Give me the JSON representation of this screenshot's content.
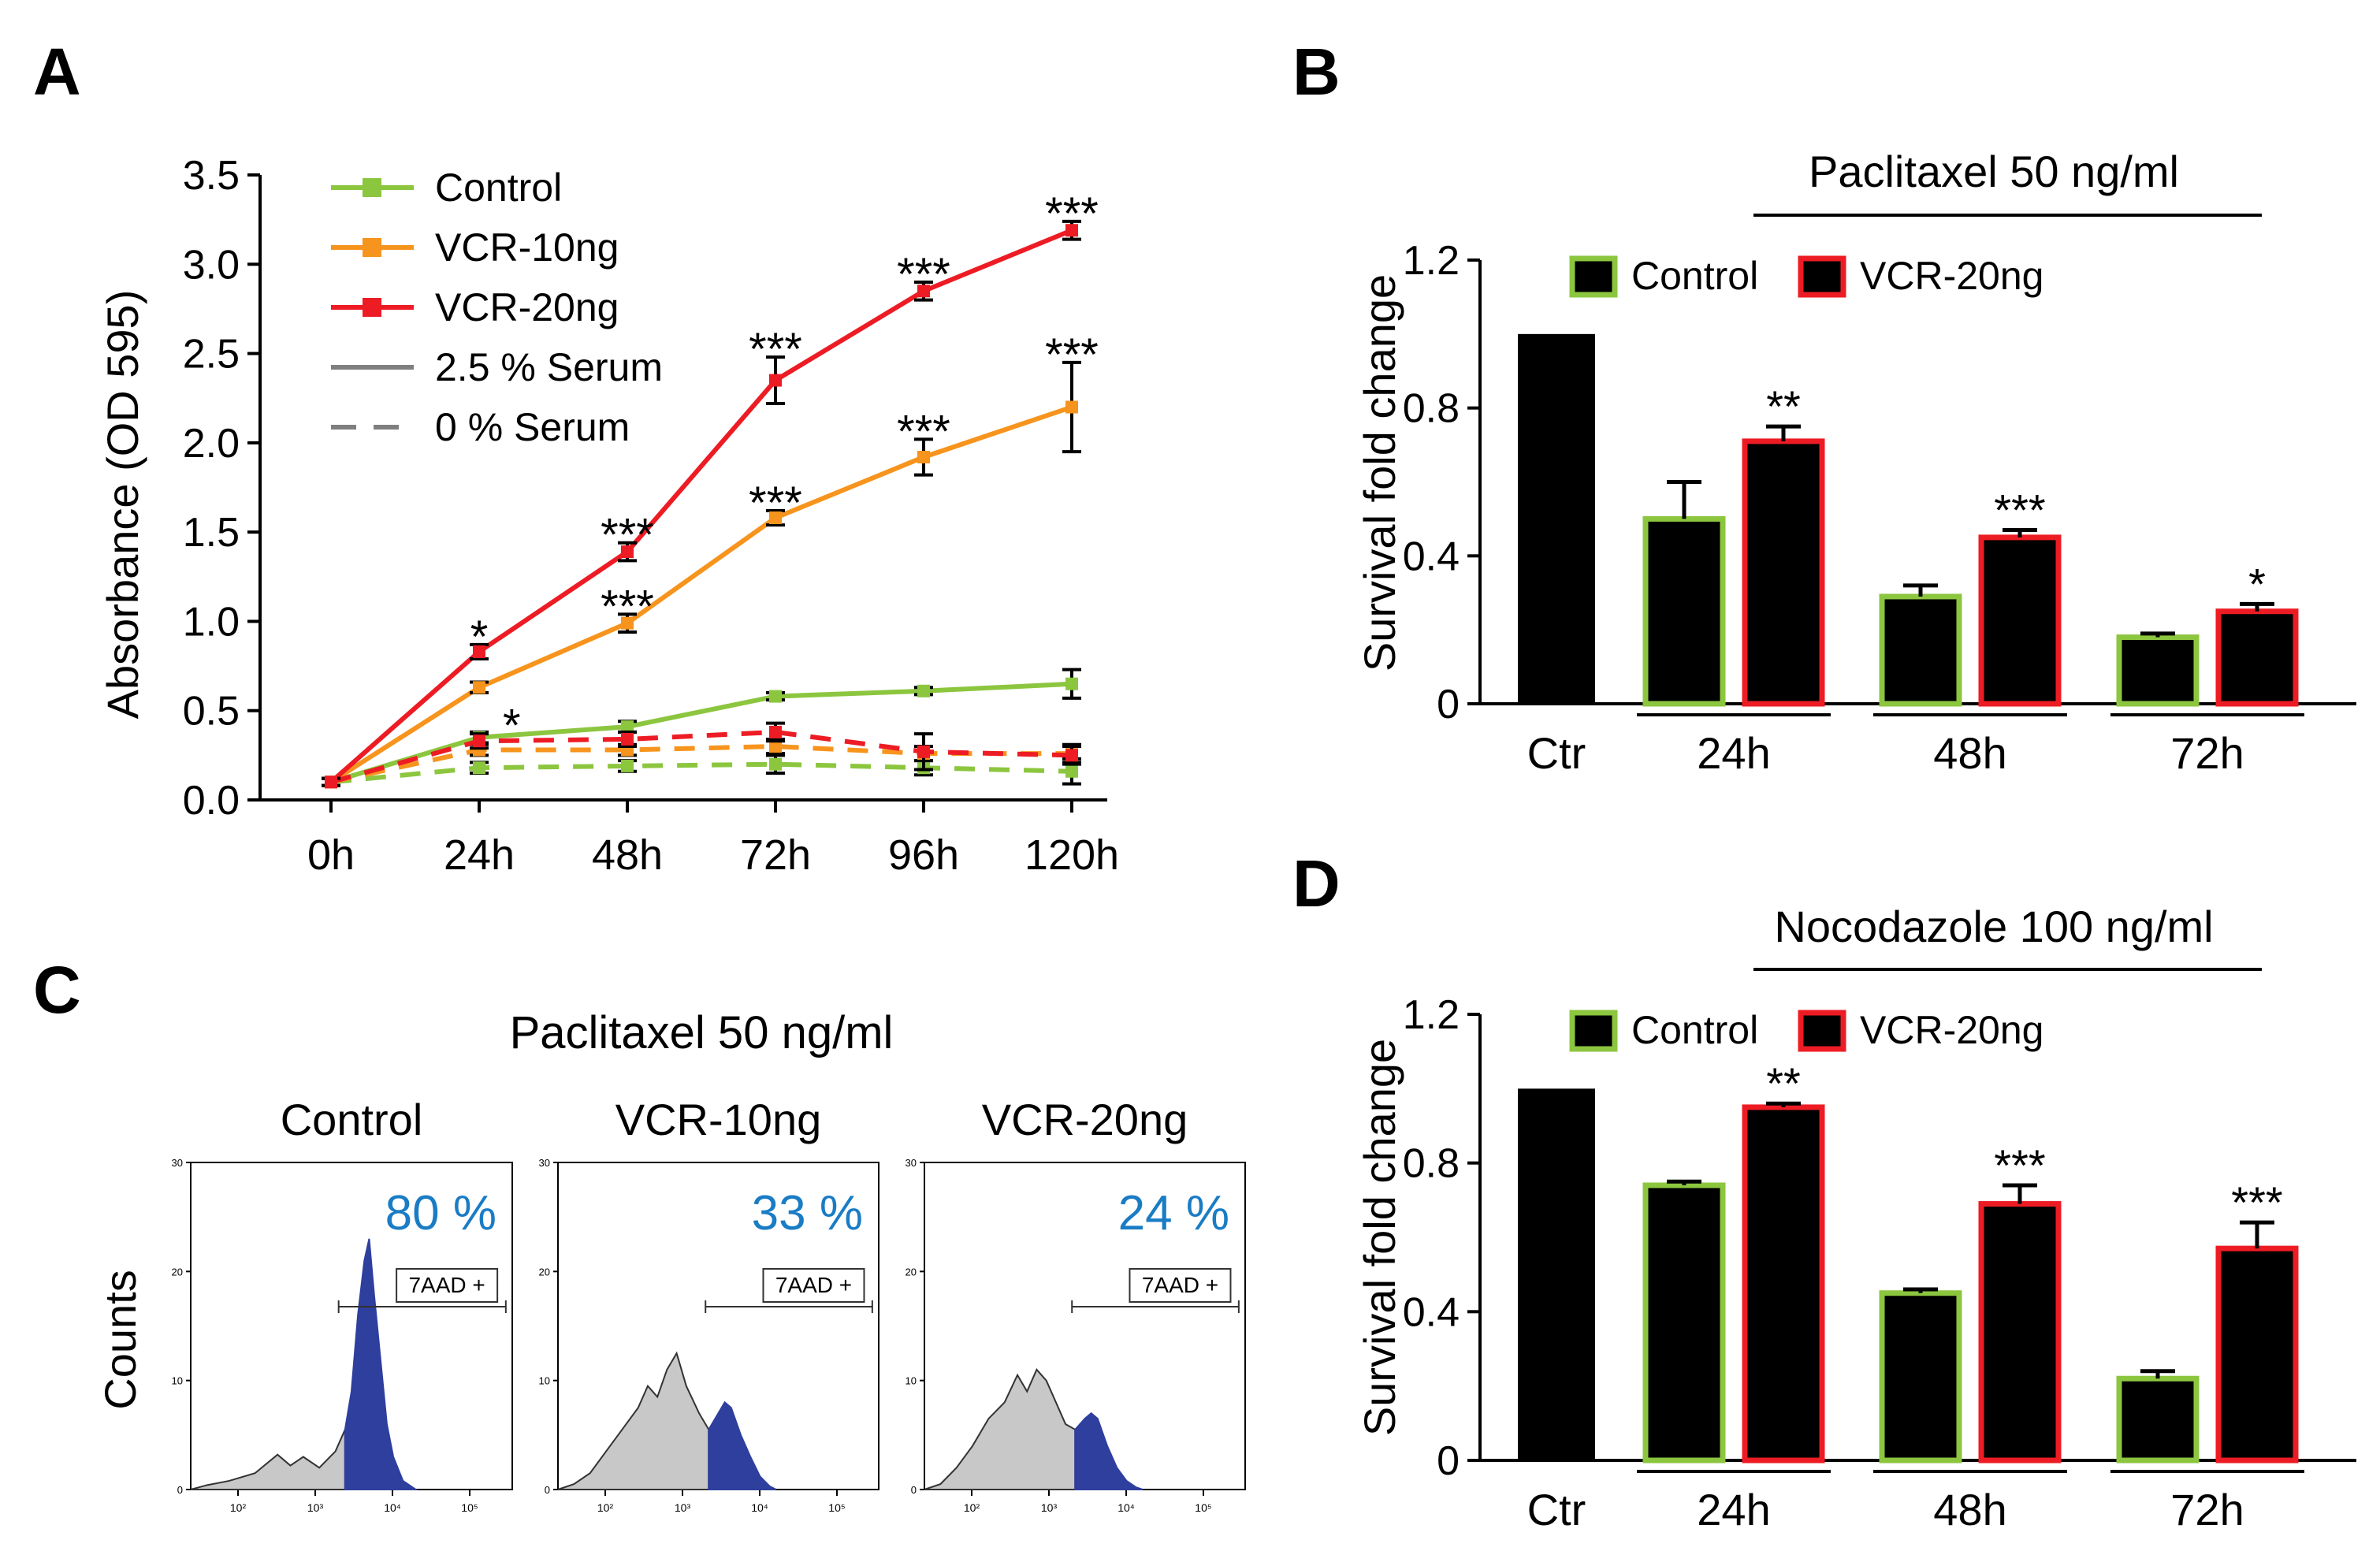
{
  "colors": {
    "control": "#8cc63f",
    "vcr10": "#f7941d",
    "vcr20": "#ed1c24",
    "black": "#000000",
    "flow_gray": "#c8c8c8",
    "flow_blue": "#2e3f9e",
    "percent_blue": "#1a7cc4"
  },
  "chart_data": [
    {
      "panel": "A",
      "type": "line",
      "ylabel": "Absorbance (OD 595)",
      "xlabel": "",
      "categories": [
        "0h",
        "24h",
        "48h",
        "72h",
        "96h",
        "120h"
      ],
      "ylim": [
        0,
        3.5
      ],
      "yticks": [
        "0.0",
        "0.5",
        "1.0",
        "1.5",
        "2.0",
        "2.5",
        "3.0",
        "3.5"
      ],
      "legend": [
        {
          "label": "Control",
          "color": "#8cc63f",
          "style": "marker"
        },
        {
          "label": "VCR-10ng",
          "color": "#f7941d",
          "style": "marker"
        },
        {
          "label": "VCR-20ng",
          "color": "#ed1c24",
          "style": "marker"
        },
        {
          "label": "2.5 % Serum",
          "color": "#7f7f7f",
          "style": "solid"
        },
        {
          "label": "0 % Serum",
          "color": "#7f7f7f",
          "style": "dashed"
        }
      ],
      "series": [
        {
          "name": "Control",
          "serum": "2.5 % Serum",
          "color": "#8cc63f",
          "dashed": false,
          "values": [
            0.1,
            0.35,
            0.41,
            0.58,
            0.61,
            0.65
          ],
          "errors": [
            0.02,
            0.03,
            0.03,
            0.02,
            0.02,
            0.08
          ]
        },
        {
          "name": "VCR-10ng",
          "serum": "2.5 % Serum",
          "color": "#f7941d",
          "dashed": false,
          "values": [
            0.1,
            0.63,
            0.99,
            1.58,
            1.92,
            2.2
          ],
          "errors": [
            0.02,
            0.03,
            0.05,
            0.04,
            0.1,
            0.25
          ]
        },
        {
          "name": "VCR-20ng",
          "serum": "2.5 % Serum",
          "color": "#ed1c24",
          "dashed": false,
          "values": [
            0.1,
            0.83,
            1.39,
            2.35,
            2.85,
            3.19
          ],
          "errors": [
            0.02,
            0.04,
            0.05,
            0.13,
            0.05,
            0.05
          ]
        },
        {
          "name": "Control",
          "serum": "0 % Serum",
          "color": "#8cc63f",
          "dashed": true,
          "values": [
            0.1,
            0.18,
            0.19,
            0.2,
            0.18,
            0.16
          ],
          "errors": [
            0.02,
            0.03,
            0.03,
            0.05,
            0.04,
            0.07
          ]
        },
        {
          "name": "VCR-10ng",
          "serum": "0 % Serum",
          "color": "#f7941d",
          "dashed": true,
          "values": [
            0.1,
            0.28,
            0.28,
            0.3,
            0.26,
            0.26
          ],
          "errors": [
            0.02,
            0.03,
            0.03,
            0.04,
            0.04,
            0.05
          ]
        },
        {
          "name": "VCR-20ng",
          "serum": "0 % Serum",
          "color": "#ed1c24",
          "dashed": true,
          "values": [
            0.1,
            0.33,
            0.34,
            0.38,
            0.27,
            0.25
          ],
          "errors": [
            0.02,
            0.04,
            0.04,
            0.05,
            0.1,
            0.05
          ]
        }
      ],
      "annotations": [
        {
          "text": "*",
          "series": "VCR-20ng",
          "x": "24h"
        },
        {
          "text": "*",
          "series": "VCR-10ng",
          "x": "24h"
        },
        {
          "text": "***",
          "series": "VCR-20ng",
          "x": "48h"
        },
        {
          "text": "***",
          "series": "VCR-10ng",
          "x": "48h"
        },
        {
          "text": "***",
          "series": "VCR-20ng",
          "x": "72h"
        },
        {
          "text": "***",
          "series": "VCR-10ng",
          "x": "72h"
        },
        {
          "text": "***",
          "series": "VCR-20ng",
          "x": "96h"
        },
        {
          "text": "***",
          "series": "VCR-10ng",
          "x": "96h"
        },
        {
          "text": "***",
          "series": "VCR-20ng",
          "x": "120h"
        },
        {
          "text": "***",
          "series": "VCR-10ng",
          "x": "120h"
        }
      ]
    },
    {
      "panel": "B",
      "type": "bar",
      "title": "Paclitaxel 50 ng/ml",
      "ylabel": "Survival fold change",
      "ylim": [
        0,
        1.2
      ],
      "yticks": [
        "0",
        "0.4",
        "0.8",
        "1.2"
      ],
      "legend": [
        {
          "label": "Control",
          "edge": "#8cc63f"
        },
        {
          "label": "VCR-20ng",
          "edge": "#ed1c24"
        }
      ],
      "categories": [
        "Ctr",
        "24h",
        "48h",
        "72h"
      ],
      "bars": [
        {
          "group": "Ctr",
          "series": "Ctr",
          "value": 1.0,
          "error": 0,
          "sig": ""
        },
        {
          "group": "24h",
          "series": "Control",
          "value": 0.5,
          "error": 0.1,
          "sig": ""
        },
        {
          "group": "24h",
          "series": "VCR-20ng",
          "value": 0.71,
          "error": 0.04,
          "sig": "**"
        },
        {
          "group": "48h",
          "series": "Control",
          "value": 0.29,
          "error": 0.03,
          "sig": ""
        },
        {
          "group": "48h",
          "series": "VCR-20ng",
          "value": 0.45,
          "error": 0.02,
          "sig": "***"
        },
        {
          "group": "72h",
          "series": "Control",
          "value": 0.18,
          "error": 0.01,
          "sig": ""
        },
        {
          "group": "72h",
          "series": "VCR-20ng",
          "value": 0.25,
          "error": 0.02,
          "sig": "*"
        }
      ]
    },
    {
      "panel": "C",
      "type": "histogram",
      "title": "Paclitaxel 50 ng/ml",
      "ylabel": "Counts",
      "yticks": [
        "0",
        "10",
        "20",
        "30"
      ],
      "xticks": [
        "10²",
        "10³",
        "10⁴",
        "10⁵"
      ],
      "gate_label": "7AAD +",
      "subplots": [
        {
          "name": "Control",
          "percent": "80 %"
        },
        {
          "name": "VCR-10ng",
          "percent": "33 %"
        },
        {
          "name": "VCR-20ng",
          "percent": "24 %"
        }
      ]
    },
    {
      "panel": "D",
      "type": "bar",
      "title": "Nocodazole 100 ng/ml",
      "ylabel": "Survival fold change",
      "ylim": [
        0,
        1.2
      ],
      "yticks": [
        "0",
        "0.4",
        "0.8",
        "1.2"
      ],
      "legend": [
        {
          "label": "Control",
          "edge": "#8cc63f"
        },
        {
          "label": "VCR-20ng",
          "edge": "#ed1c24"
        }
      ],
      "categories": [
        "Ctr",
        "24h",
        "48h",
        "72h"
      ],
      "bars": [
        {
          "group": "Ctr",
          "series": "Ctr",
          "value": 1.0,
          "error": 0,
          "sig": ""
        },
        {
          "group": "24h",
          "series": "Control",
          "value": 0.74,
          "error": 0.01,
          "sig": ""
        },
        {
          "group": "24h",
          "series": "VCR-20ng",
          "value": 0.95,
          "error": 0.01,
          "sig": "**"
        },
        {
          "group": "48h",
          "series": "Control",
          "value": 0.45,
          "error": 0.01,
          "sig": ""
        },
        {
          "group": "48h",
          "series": "VCR-20ng",
          "value": 0.69,
          "error": 0.05,
          "sig": "***"
        },
        {
          "group": "72h",
          "series": "Control",
          "value": 0.22,
          "error": 0.02,
          "sig": ""
        },
        {
          "group": "72h",
          "series": "VCR-20ng",
          "value": 0.57,
          "error": 0.07,
          "sig": "***"
        }
      ]
    }
  ],
  "panel_labels": {
    "a": "A",
    "b": "B",
    "c": "C",
    "d": "D"
  }
}
